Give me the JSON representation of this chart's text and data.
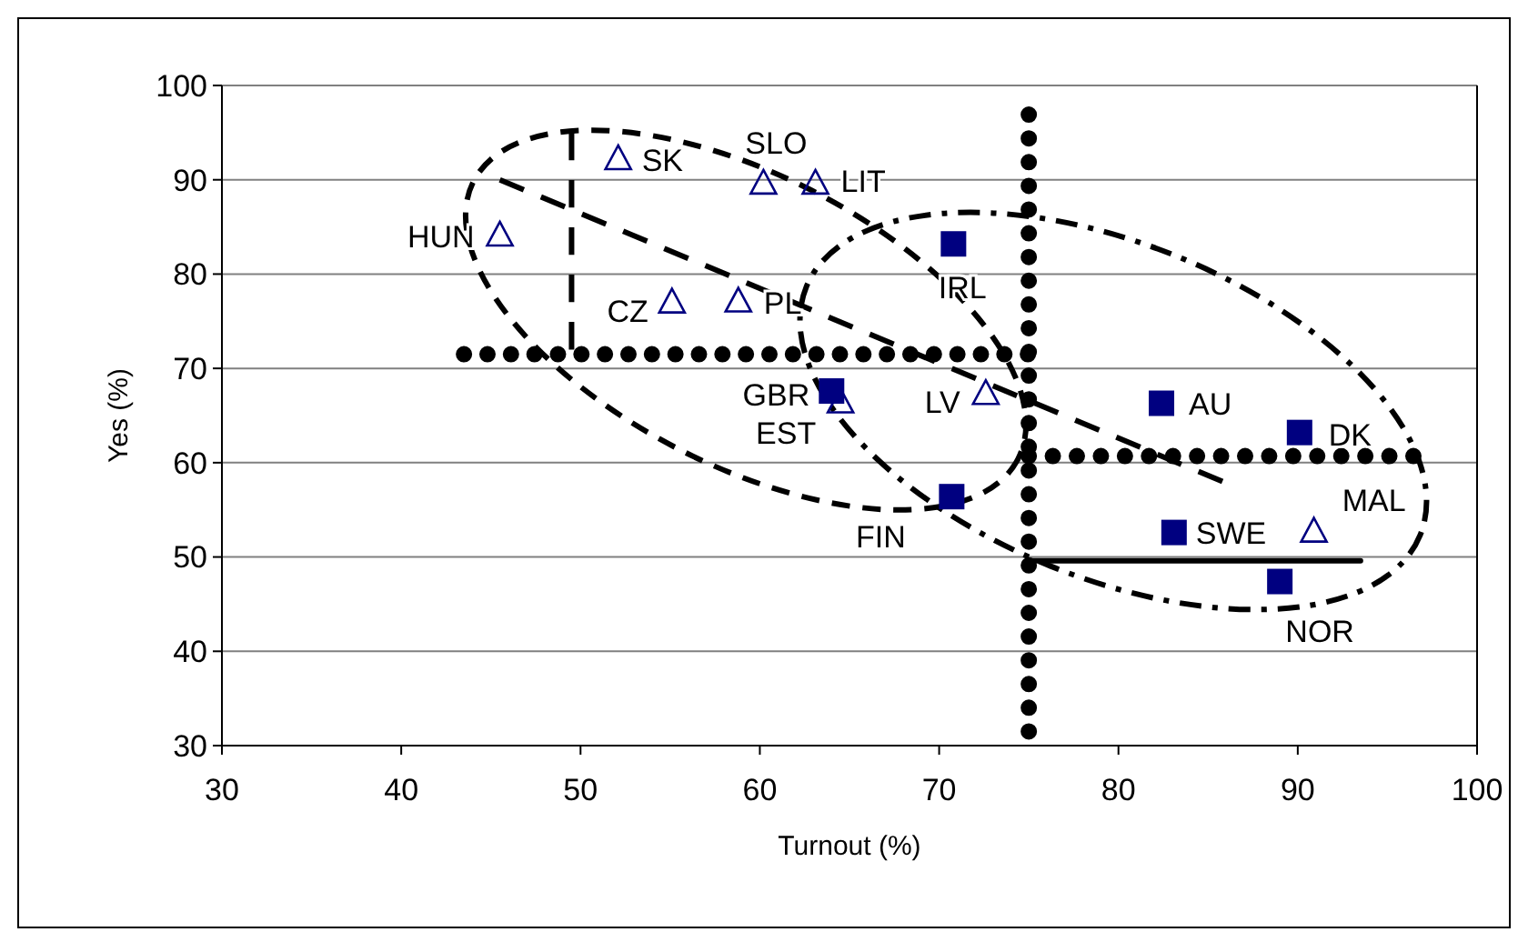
{
  "chart_data": {
    "type": "scatter",
    "xlabel": "Turnout (%)",
    "ylabel": "Yes (%)",
    "xlim": [
      30,
      100
    ],
    "xticks": [
      30,
      40,
      50,
      60,
      70,
      80,
      90,
      100
    ],
    "ylim": [
      30,
      100
    ],
    "yticks": [
      30,
      40,
      50,
      60,
      70,
      80,
      90,
      100
    ],
    "grid": "y",
    "series": [
      {
        "type": "line",
        "color": "#000000",
        "line_style": "dotted",
        "marker": "none",
        "x": [
          75,
          75
        ],
        "values": [
          31.5,
          97
        ]
      },
      {
        "type": "line",
        "color": "#000000",
        "line_style": "dotted",
        "marker": "none",
        "x": [
          43.5,
          75
        ],
        "values": [
          71.5,
          71.5
        ]
      },
      {
        "type": "line",
        "color": "#000000",
        "line_style": "dotted",
        "marker": "none",
        "x": [
          75,
          96.5
        ],
        "values": [
          60.7,
          60.7
        ]
      },
      {
        "type": "line",
        "color": "#000000",
        "line_style": "solid",
        "marker": "none",
        "x": [
          75,
          93.5
        ],
        "values": [
          49.6,
          49.6
        ]
      },
      {
        "type": "line",
        "color": "#000000",
        "line_style": "dashed",
        "marker": "none",
        "x": [
          45.5,
          85.8
        ],
        "values": [
          90,
          58
        ]
      },
      {
        "type": "line",
        "color": "#000000",
        "line_style": "dashed",
        "marker": "none",
        "x": [
          49.5,
          49.5
        ],
        "values": [
          95,
          72
        ]
      },
      {
        "color": "#000080",
        "marker": "triangle",
        "x": [
          45.5,
          52.1,
          60.2,
          63.1,
          55.1,
          58.8,
          64.5,
          72.6,
          90.9
        ],
        "values": [
          84,
          92.1,
          89.5,
          89.5,
          76.9,
          77,
          66.3,
          67.2,
          52.6
        ],
        "value_labels": [
          "HUN",
          "SK",
          "SLO",
          "LIT",
          "CZ",
          "PL",
          "EST",
          "LV",
          "MAL"
        ]
      },
      {
        "color": "#000080",
        "marker": "square",
        "x": [
          64,
          70.8,
          82.4,
          90.1,
          70.7,
          83.1,
          89
        ],
        "values": [
          67.6,
          83.2,
          66.3,
          63.2,
          56.4,
          52.6,
          47.4
        ],
        "value_labels": [
          "GBR",
          "IRL",
          "AU",
          "DK",
          "FIN",
          "SWE",
          "NOR"
        ]
      }
    ]
  }
}
